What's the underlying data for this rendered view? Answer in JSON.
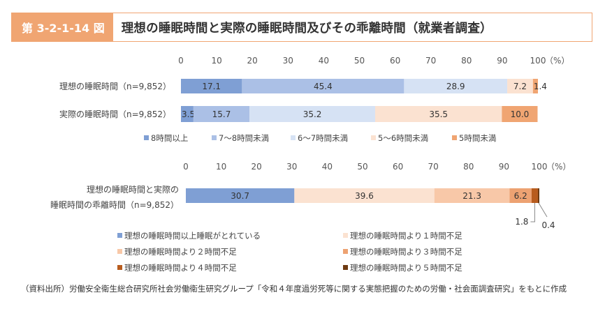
{
  "header": {
    "figure_number": "第 3-2-1-14 図",
    "title": "理想の睡眠時間と実際の睡眠時間及びその乖離時間（就業者調査）"
  },
  "source": "（資料出所）労働安全衛生総合研究所社会労働衛生研究グループ「令和４年度過労死等に関する実態把握のための労働・社会面調査研究」をもとに作成",
  "chart_data": [
    {
      "type": "bar",
      "orientation": "horizontal",
      "stacked": true,
      "xlim": [
        0,
        100
      ],
      "ticks": [
        0,
        10,
        20,
        30,
        40,
        50,
        60,
        70,
        80,
        90,
        100
      ],
      "unit": "（%）",
      "categories": [
        "理想の睡眠時間（n=9,852）",
        "実際の睡眠時間（n=9,852）"
      ],
      "series": [
        {
          "name": "8時間以上",
          "color": "#7f9fd4",
          "values": [
            17.1,
            3.5
          ]
        },
        {
          "name": "7～8時間未満",
          "color": "#abc0e6",
          "values": [
            45.4,
            15.7
          ]
        },
        {
          "name": "6～7時間未満",
          "color": "#d6e2f4",
          "values": [
            28.9,
            35.2
          ]
        },
        {
          "name": "5～6時間未満",
          "color": "#fbe2d1",
          "values": [
            7.2,
            35.5
          ]
        },
        {
          "name": "5時間未満",
          "color": "#f0a572",
          "values": [
            1.4,
            10.0
          ]
        }
      ],
      "labels": [
        [
          "17.1",
          "45.4",
          "28.9",
          "7.2",
          "1.4"
        ],
        [
          "3.5",
          "15.7",
          "35.2",
          "35.5",
          "10.0"
        ]
      ],
      "legend": "bottom"
    },
    {
      "type": "bar",
      "orientation": "horizontal",
      "stacked": true,
      "xlim": [
        0,
        100
      ],
      "ticks": [
        0,
        10,
        20,
        30,
        40,
        50,
        60,
        70,
        80,
        90,
        100
      ],
      "unit": "（%）",
      "categories": [
        "理想の睡眠時間と実際の睡眠時間の乖離時間（n=9,852）"
      ],
      "category_lines": [
        "理想の睡眠時間と実際の",
        "睡眠時間の乖離時間（n=9,852）"
      ],
      "series": [
        {
          "name": "理想の睡眠時間以上睡眠がとれている",
          "color": "#7f9fd4",
          "values": [
            30.7
          ]
        },
        {
          "name": "理想の睡眠時間より１時間不足",
          "color": "#fbe2d1",
          "values": [
            39.6
          ]
        },
        {
          "name": "理想の睡眠時間より２時間不足",
          "color": "#f8c8a8",
          "values": [
            21.3
          ]
        },
        {
          "name": "理想の睡眠時間より３時間不足",
          "color": "#eda272",
          "values": [
            6.2
          ]
        },
        {
          "name": "理想の睡眠時間より４時間不足",
          "color": "#b85c1e",
          "values": [
            1.8
          ]
        },
        {
          "name": "理想の睡眠時間より５時間不足",
          "color": "#6e3b12",
          "values": [
            0.4
          ]
        }
      ],
      "labels": [
        "30.7",
        "39.6",
        "21.3",
        "6.2",
        "1.8",
        "0.4"
      ],
      "legend": "bottom"
    }
  ]
}
